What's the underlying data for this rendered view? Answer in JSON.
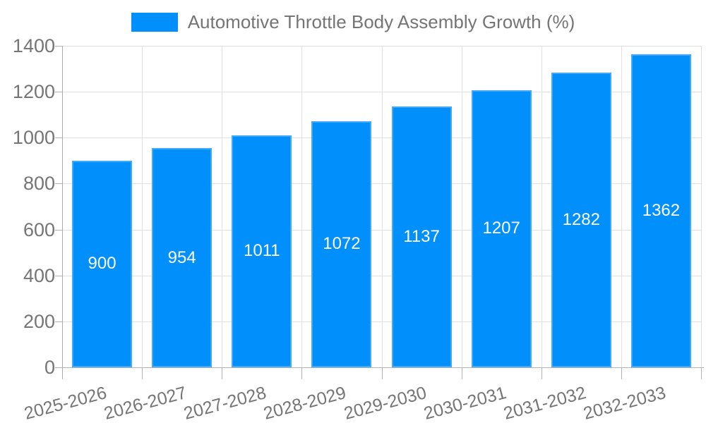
{
  "legend": {
    "label": "Automotive Throttle Body Assembly Growth (%)",
    "swatch_color": "#008FFB"
  },
  "chart_data": {
    "type": "bar",
    "title": "Automotive Throttle Body Assembly Growth (%)",
    "categories": [
      "2025-2026",
      "2026-2027",
      "2027-2028",
      "2028-2029",
      "2029-2030",
      "2030-2031",
      "2031-2032",
      "2032-2033"
    ],
    "series": [
      {
        "name": "Automotive Throttle Body Assembly Growth (%)",
        "values": [
          900,
          954,
          1011,
          1072,
          1137,
          1207,
          1282,
          1362
        ]
      }
    ],
    "data_labels": [
      "900",
      "954",
      "1011",
      "1072",
      "1137",
      "1207",
      "1282",
      "1362"
    ],
    "xlabel": "",
    "ylabel": "",
    "ylim": [
      0,
      1400
    ],
    "yticks": [
      0,
      200,
      400,
      600,
      800,
      1000,
      1200,
      1400
    ],
    "grid": true,
    "legend_position": "top",
    "colors": {
      "bar": "#008FFB",
      "grid": "#e0e0e0",
      "axis": "#b2b2b2",
      "tick_label": "#757575",
      "data_label": "#ffffff"
    }
  }
}
